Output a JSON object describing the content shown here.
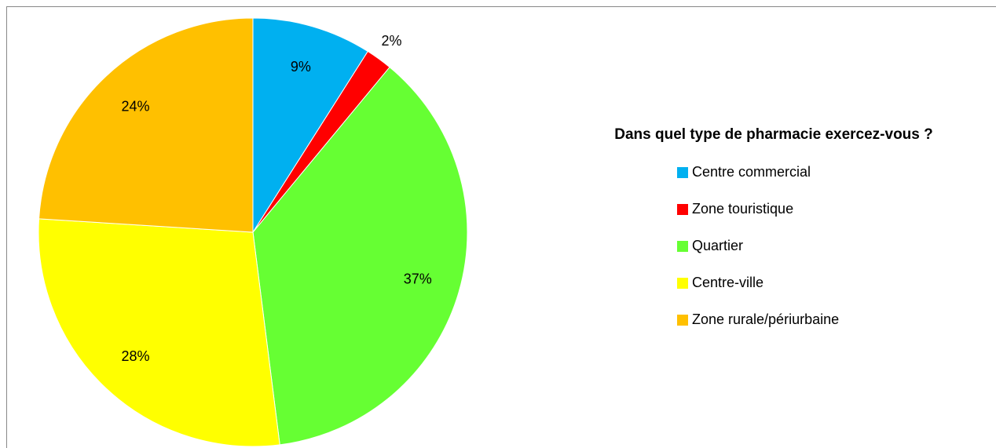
{
  "chart_data": {
    "type": "pie",
    "title": "Dans quel type de pharmacie exercez-vous ?",
    "categories": [
      "Centre commercial",
      "Zone touristique",
      "Quartier",
      "Centre-ville",
      "Zone rurale/périurbaine"
    ],
    "values": [
      9,
      2,
      37,
      28,
      24
    ],
    "value_labels": [
      "9%",
      "2%",
      "37%",
      "28%",
      "24%"
    ],
    "colors": [
      "#00b0f0",
      "#ff0000",
      "#66ff33",
      "#ffff00",
      "#ffc000"
    ],
    "legend": "right"
  }
}
